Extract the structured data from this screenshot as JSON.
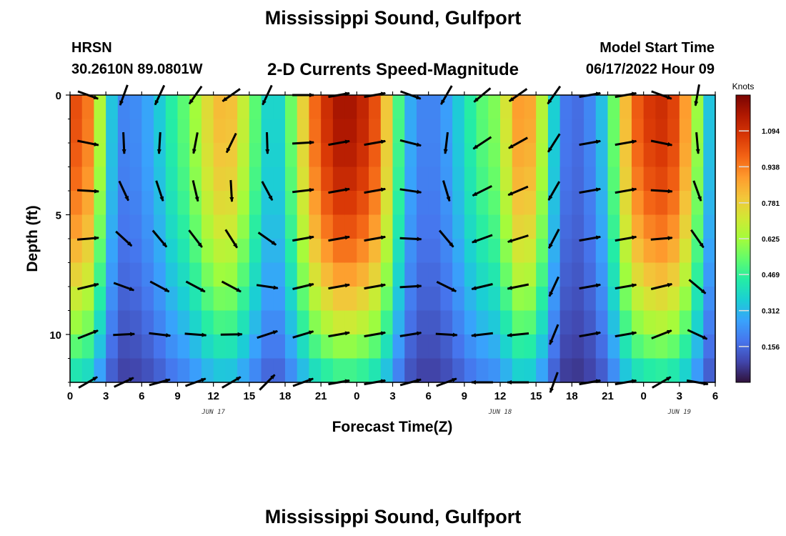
{
  "page": {
    "title": "Mississippi Sound, Gulfport",
    "footer_title": "Mississippi Sound, Gulfport",
    "station": "HRSN",
    "coordinates": "30.2610N  89.0801W",
    "subtitle": "2-D Currents Speed-Magnitude",
    "model_start_label": "Model Start Time",
    "model_start_value": "06/17/2022 Hour 09"
  },
  "colors": {
    "arrow": "#000000",
    "background": "#ffffff",
    "colormap": [
      "#30123b",
      "#4145ab",
      "#4675ed",
      "#39a2fc",
      "#1bcfd4",
      "#24eca6",
      "#61fc6c",
      "#a4fc3b",
      "#d1e834",
      "#f3c63a",
      "#fe9b2d",
      "#f36315",
      "#d93806",
      "#b11901",
      "#7a0402"
    ]
  },
  "chart_data": {
    "type": "heatmap",
    "title": "2-D Currents Speed-Magnitude",
    "xlabel": "Forecast Time(Z)",
    "ylabel": "Depth (ft)",
    "x_unit": "hours since 06/17 00Z",
    "x_range": [
      0,
      54
    ],
    "y_range": [
      0,
      12
    ],
    "y_ticks": [
      0,
      5,
      10
    ],
    "x_ticks": [
      0,
      3,
      6,
      9,
      12,
      15,
      18,
      21,
      24,
      27,
      30,
      33,
      36,
      39,
      42,
      45,
      48,
      51,
      54
    ],
    "x_tick_labels": [
      "0",
      "3",
      "6",
      "9",
      "12",
      "15",
      "18",
      "21",
      "0",
      "3",
      "6",
      "9",
      "12",
      "15",
      "18",
      "21",
      "0",
      "3",
      "6"
    ],
    "date_labels": [
      {
        "text": "JUN 17",
        "x": 12
      },
      {
        "text": "JUN 18",
        "x": 36
      },
      {
        "text": "JUN 19",
        "x": 51
      }
    ],
    "colorbar": {
      "unit": "Knots",
      "min": 0.0,
      "max": 1.25,
      "ticks": [
        0.156,
        0.312,
        0.469,
        0.625,
        0.781,
        0.938,
        1.094
      ]
    },
    "speed_profile": {
      "hours": [
        0,
        1,
        2,
        3,
        4,
        5,
        6,
        7,
        8,
        9,
        10,
        11,
        12,
        13,
        14,
        15,
        16,
        17,
        18,
        19,
        20,
        21,
        22,
        23,
        24,
        25,
        26,
        27,
        28,
        29,
        30,
        31,
        32,
        33,
        34,
        35,
        36,
        37,
        38,
        39,
        40,
        41,
        42,
        43,
        44,
        45,
        46,
        47,
        48,
        49,
        50,
        51,
        52,
        53,
        54
      ],
      "surface_speed": [
        1.0,
        1.05,
        0.85,
        0.45,
        0.22,
        0.2,
        0.25,
        0.3,
        0.4,
        0.5,
        0.55,
        0.7,
        0.8,
        0.85,
        0.78,
        0.6,
        0.45,
        0.3,
        0.45,
        0.65,
        0.9,
        1.05,
        1.15,
        1.2,
        1.15,
        1.1,
        0.95,
        0.65,
        0.35,
        0.22,
        0.2,
        0.22,
        0.3,
        0.4,
        0.5,
        0.55,
        0.6,
        0.85,
        0.92,
        0.82,
        0.5,
        0.22,
        0.15,
        0.18,
        0.25,
        0.4,
        0.7,
        0.95,
        1.05,
        1.1,
        1.1,
        1.0,
        0.78,
        0.45,
        0.22
      ],
      "bottom_factor": 0.25,
      "depth_decay_ft": 9.0
    },
    "vectors": {
      "hours": [
        1.5,
        4.5,
        7.5,
        10.5,
        13.5,
        16.5,
        19.5,
        22.5,
        25.5,
        28.5,
        31.5,
        34.5,
        37.5,
        40.5,
        43.5,
        46.5,
        49.5,
        52.5
      ],
      "depths_ft": [
        0,
        2,
        4,
        6,
        8,
        10,
        12
      ],
      "surface_dir_deg": [
        110,
        200,
        205,
        215,
        235,
        205,
        90,
        80,
        80,
        110,
        210,
        230,
        235,
        215,
        80,
        80,
        110,
        190
      ],
      "bottom_dir_deg": [
        60,
        65,
        75,
        70,
        60,
        45,
        70,
        80,
        80,
        75,
        70,
        270,
        270,
        200,
        80,
        80,
        60,
        100
      ]
    }
  }
}
